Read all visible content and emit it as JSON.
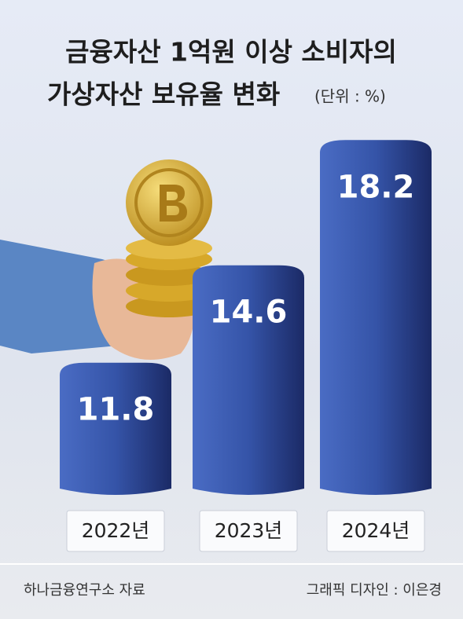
{
  "chart_data": {
    "type": "bar",
    "title": [
      "금융자산 1억원 이상 소비자의",
      "가상자산 보유율 변화"
    ],
    "unit": "(단위 : %)",
    "categories": [
      "2022년",
      "2023년",
      "2024년"
    ],
    "values": [
      11.8,
      14.6,
      18.2
    ],
    "color": "#3a5bb3",
    "ylim": [
      8,
      18.5
    ],
    "source": "하나금융연구소 자료",
    "credit": "그래픽 디자인 : 이은경"
  }
}
